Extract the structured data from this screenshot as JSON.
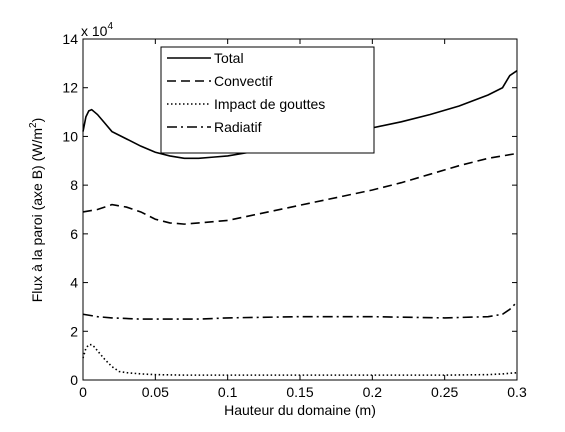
{
  "chart_data": {
    "type": "line",
    "title": "",
    "xlabel": "Hauteur du domaine (m)",
    "ylabel": "Flux à la paroi (axe B) (W/m²)",
    "ylabel_main": "Flux à la paroi (axe B) (W/m",
    "ylabel_sup": "2",
    "ylabel_tail": ")",
    "y_exponent_prefix": "x 10",
    "y_exponent_power": "4",
    "xlim": [
      0,
      0.3
    ],
    "ylim": [
      0,
      14
    ],
    "x_ticks": [
      0,
      0.05,
      0.1,
      0.15,
      0.2,
      0.25,
      0.3
    ],
    "x_tick_labels": [
      "0",
      "0.05",
      "0.1",
      "0.15",
      "0.2",
      "0.25",
      "0.3"
    ],
    "y_ticks": [
      0,
      2,
      4,
      6,
      8,
      10,
      12,
      14
    ],
    "y_tick_labels": [
      "0",
      "2",
      "4",
      "6",
      "8",
      "10",
      "12",
      "14"
    ],
    "grid": false,
    "legend_position": "top-left",
    "series": [
      {
        "name": "Total",
        "dash": "",
        "x": [
          0,
          0.002,
          0.004,
          0.006,
          0.008,
          0.01,
          0.015,
          0.02,
          0.03,
          0.04,
          0.05,
          0.06,
          0.07,
          0.08,
          0.09,
          0.1,
          0.12,
          0.14,
          0.16,
          0.18,
          0.2,
          0.22,
          0.24,
          0.26,
          0.28,
          0.29,
          0.295,
          0.3
        ],
        "values": [
          10.2,
          10.8,
          11.05,
          11.1,
          11.0,
          10.9,
          10.55,
          10.2,
          9.9,
          9.6,
          9.35,
          9.2,
          9.1,
          9.1,
          9.15,
          9.2,
          9.4,
          9.65,
          9.9,
          10.1,
          10.35,
          10.6,
          10.9,
          11.25,
          11.7,
          12.0,
          12.5,
          12.7
        ]
      },
      {
        "name": "Convectif",
        "dash": "9,5",
        "x": [
          0,
          0.01,
          0.02,
          0.03,
          0.04,
          0.05,
          0.06,
          0.07,
          0.08,
          0.09,
          0.1,
          0.12,
          0.14,
          0.16,
          0.18,
          0.2,
          0.22,
          0.24,
          0.26,
          0.28,
          0.3
        ],
        "values": [
          6.9,
          7.0,
          7.2,
          7.1,
          6.9,
          6.6,
          6.45,
          6.4,
          6.45,
          6.5,
          6.55,
          6.8,
          7.05,
          7.3,
          7.55,
          7.8,
          8.1,
          8.45,
          8.8,
          9.1,
          9.3
        ]
      },
      {
        "name": "Impact de gouttes",
        "dash": "1.5,2.5",
        "x": [
          0,
          0.002,
          0.004,
          0.006,
          0.008,
          0.01,
          0.015,
          0.02,
          0.025,
          0.03,
          0.04,
          0.05,
          0.07,
          0.1,
          0.15,
          0.2,
          0.25,
          0.28,
          0.29,
          0.3
        ],
        "values": [
          0.9,
          1.3,
          1.45,
          1.45,
          1.35,
          1.2,
          0.85,
          0.55,
          0.35,
          0.3,
          0.25,
          0.22,
          0.2,
          0.2,
          0.2,
          0.2,
          0.2,
          0.22,
          0.25,
          0.3
        ]
      },
      {
        "name": "Radiatif",
        "dash": "10,4,2,4",
        "x": [
          0,
          0.01,
          0.02,
          0.04,
          0.06,
          0.08,
          0.1,
          0.15,
          0.2,
          0.25,
          0.28,
          0.29,
          0.295,
          0.3
        ],
        "values": [
          2.7,
          2.6,
          2.55,
          2.5,
          2.5,
          2.5,
          2.55,
          2.6,
          2.6,
          2.55,
          2.6,
          2.7,
          2.9,
          3.2
        ]
      }
    ]
  }
}
